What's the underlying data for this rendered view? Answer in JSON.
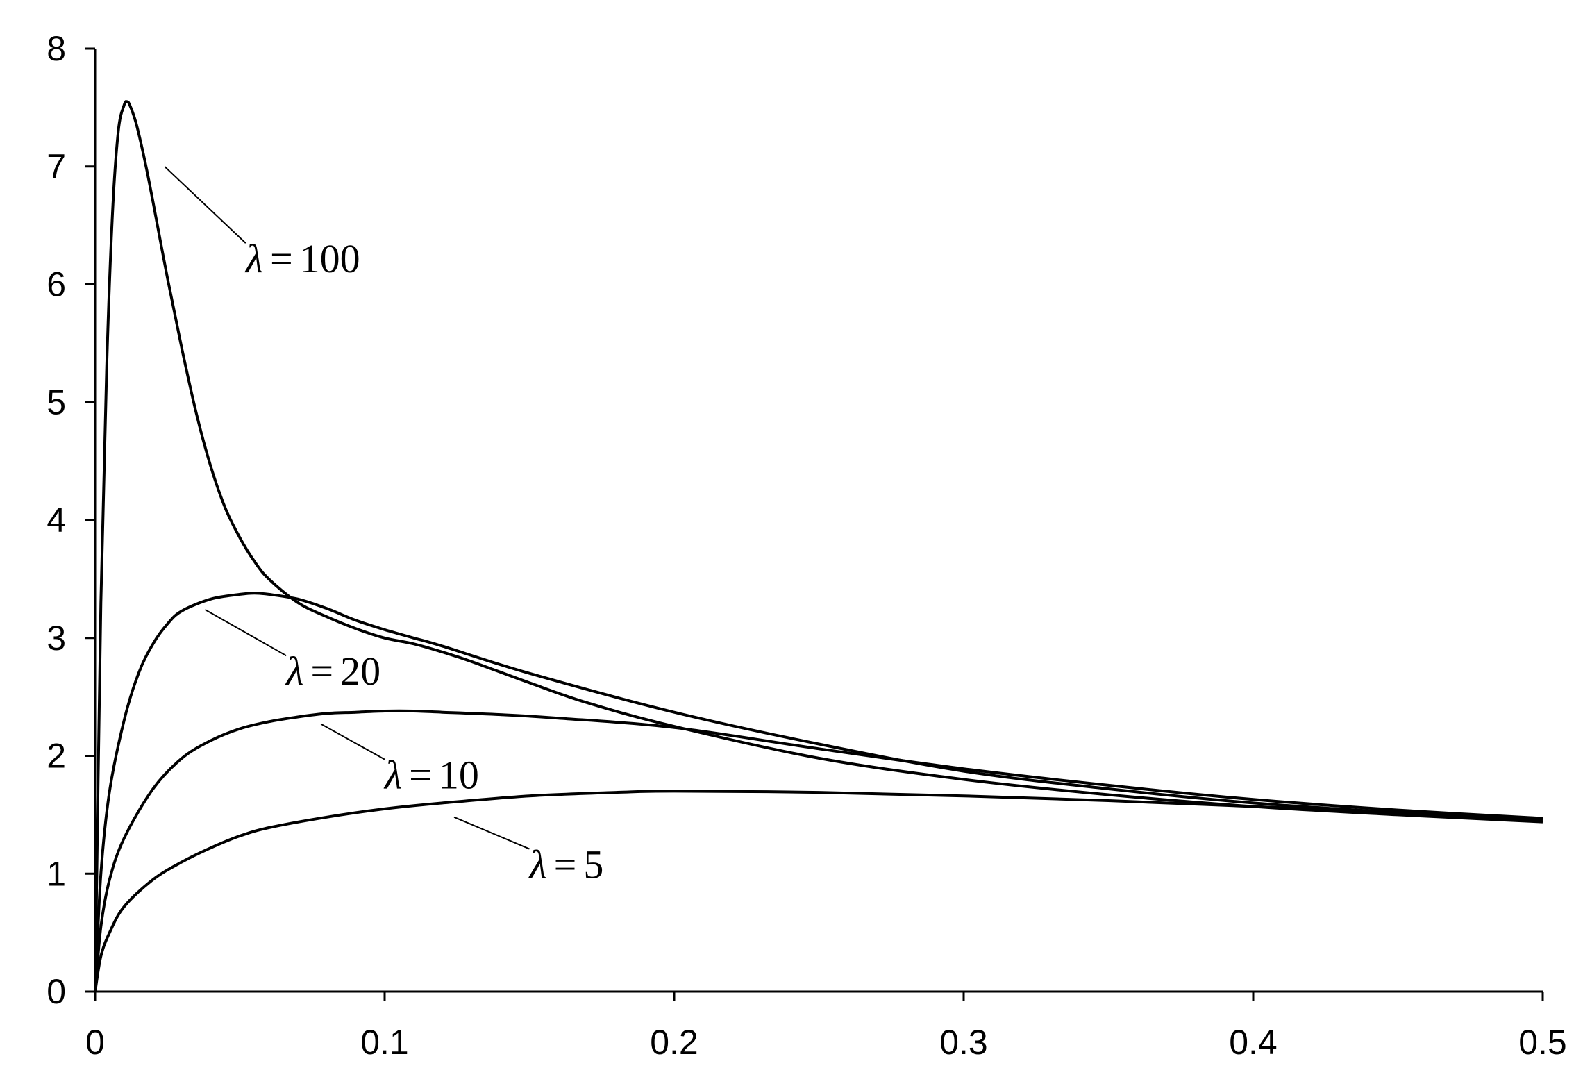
{
  "chart_data": {
    "type": "line",
    "title": "",
    "xlabel": "",
    "ylabel": "",
    "xlim": [
      0,
      0.5
    ],
    "ylim": [
      0,
      8
    ],
    "x_ticks": [
      0,
      0.1,
      0.2,
      0.3,
      0.4,
      0.5
    ],
    "x_tick_labels": [
      "0",
      "0.1",
      "0.2",
      "0.3",
      "0.4",
      "0.5"
    ],
    "y_ticks": [
      0,
      1,
      2,
      3,
      4,
      5,
      6,
      7,
      8
    ],
    "y_tick_labels": [
      "0",
      "1",
      "2",
      "3",
      "4",
      "5",
      "6",
      "7",
      "8"
    ],
    "grid": false,
    "legend": "none",
    "line_color": "#000000",
    "series": [
      {
        "name": "λ = 100",
        "label_symbol": "λ",
        "label_value": "100",
        "x": [
          0,
          0.002,
          0.004,
          0.006,
          0.008,
          0.01,
          0.011,
          0.012,
          0.014,
          0.016,
          0.018,
          0.02,
          0.025,
          0.03,
          0.035,
          0.04,
          0.045,
          0.05,
          0.055,
          0.06,
          0.07,
          0.08,
          0.09,
          0.1,
          0.11,
          0.12,
          0.13,
          0.15,
          0.17,
          0.2,
          0.25,
          0.3,
          0.35,
          0.4,
          0.45,
          0.5
        ],
        "y": [
          0,
          3.3,
          5.3,
          6.6,
          7.3,
          7.52,
          7.55,
          7.52,
          7.38,
          7.18,
          6.95,
          6.7,
          6.05,
          5.45,
          4.9,
          4.45,
          4.1,
          3.85,
          3.65,
          3.5,
          3.3,
          3.18,
          3.08,
          3.0,
          2.95,
          2.88,
          2.8,
          2.62,
          2.45,
          2.25,
          1.98,
          1.8,
          1.67,
          1.57,
          1.5,
          1.44
        ]
      },
      {
        "name": "λ = 20",
        "label_symbol": "λ",
        "label_value": "20",
        "x": [
          0,
          0.002,
          0.005,
          0.01,
          0.015,
          0.02,
          0.025,
          0.03,
          0.04,
          0.05,
          0.055,
          0.06,
          0.07,
          0.08,
          0.09,
          0.1,
          0.11,
          0.12,
          0.15,
          0.2,
          0.25,
          0.3,
          0.35,
          0.4,
          0.45,
          0.5
        ],
        "y": [
          0,
          1.0,
          1.7,
          2.3,
          2.7,
          2.95,
          3.12,
          3.23,
          3.33,
          3.37,
          3.38,
          3.37,
          3.33,
          3.25,
          3.15,
          3.07,
          3.0,
          2.93,
          2.7,
          2.37,
          2.1,
          1.87,
          1.72,
          1.6,
          1.52,
          1.46
        ]
      },
      {
        "name": "λ = 10",
        "label_symbol": "λ",
        "label_value": "10",
        "x": [
          0,
          0.002,
          0.005,
          0.01,
          0.02,
          0.03,
          0.04,
          0.05,
          0.06,
          0.07,
          0.08,
          0.09,
          0.1,
          0.11,
          0.12,
          0.14,
          0.16,
          0.2,
          0.25,
          0.3,
          0.35,
          0.4,
          0.45,
          0.5
        ],
        "y": [
          0,
          0.55,
          0.95,
          1.3,
          1.72,
          1.98,
          2.13,
          2.23,
          2.29,
          2.33,
          2.36,
          2.37,
          2.38,
          2.38,
          2.37,
          2.35,
          2.32,
          2.24,
          2.06,
          1.89,
          1.75,
          1.63,
          1.54,
          1.47
        ]
      },
      {
        "name": "λ = 5",
        "label_symbol": "λ",
        "label_value": "5",
        "x": [
          0,
          0.002,
          0.005,
          0.01,
          0.02,
          0.03,
          0.04,
          0.05,
          0.06,
          0.08,
          0.1,
          0.12,
          0.15,
          0.18,
          0.2,
          0.25,
          0.3,
          0.35,
          0.4,
          0.45,
          0.5
        ],
        "y": [
          0,
          0.3,
          0.5,
          0.72,
          0.95,
          1.1,
          1.22,
          1.32,
          1.39,
          1.48,
          1.55,
          1.6,
          1.66,
          1.69,
          1.7,
          1.69,
          1.66,
          1.62,
          1.57,
          1.52,
          1.47
        ]
      }
    ],
    "annotations": [
      {
        "series": 0,
        "point": [
          0.024,
          7.0
        ],
        "label_at": [
          0.052,
          6.35
        ]
      },
      {
        "series": 1,
        "point": [
          0.038,
          3.24
        ],
        "label_at": [
          0.066,
          2.85
        ]
      },
      {
        "series": 2,
        "point": [
          0.078,
          2.27
        ],
        "label_at": [
          0.1,
          1.97
        ]
      },
      {
        "series": 3,
        "point": [
          0.124,
          1.48
        ],
        "label_at": [
          0.15,
          1.21
        ]
      }
    ]
  }
}
